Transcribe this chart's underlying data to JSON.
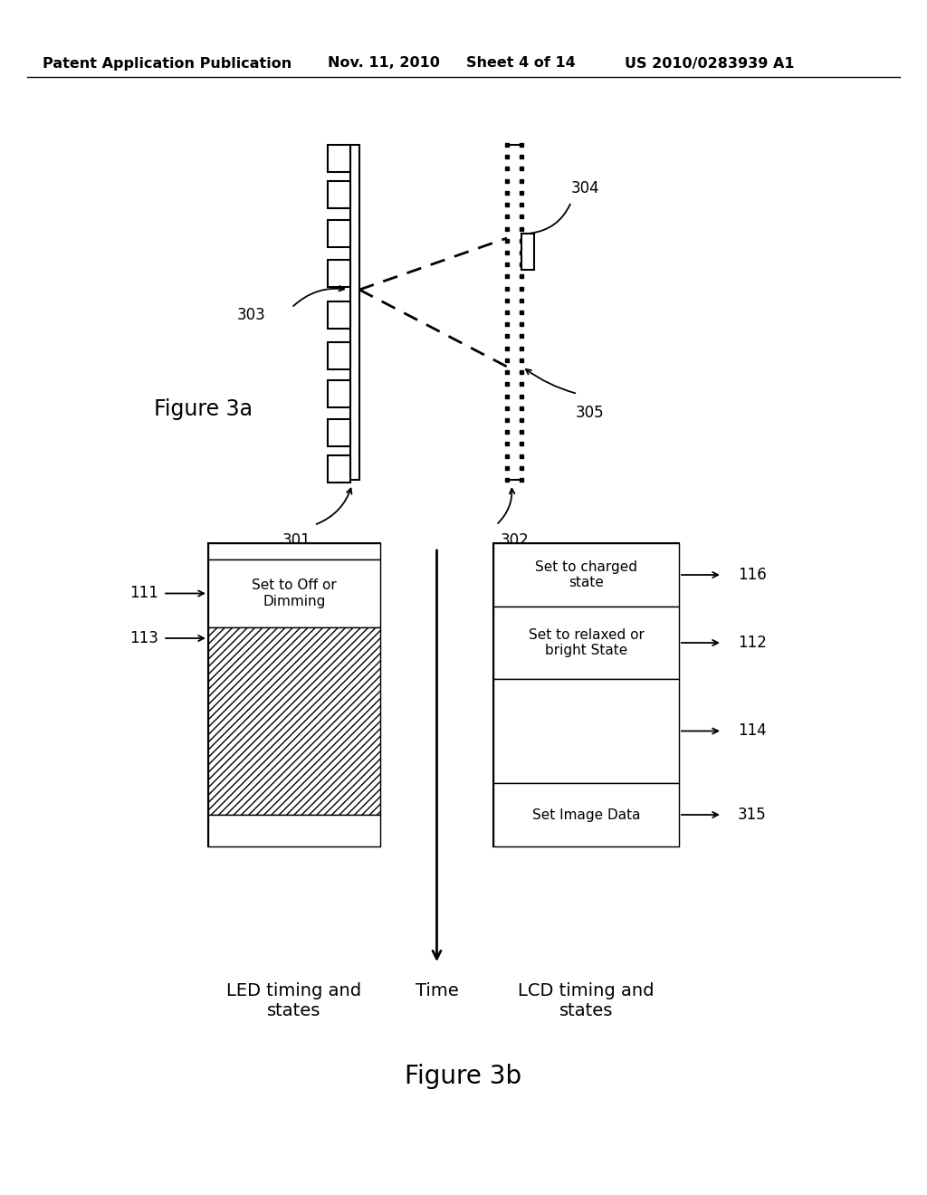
{
  "title_header": "Patent Application Publication",
  "title_date": "Nov. 11, 2010",
  "title_sheet": "Sheet 4 of 14",
  "title_patent": "US 2010/0283939 A1",
  "fig3a_label": "Figure 3a",
  "fig3b_label": "Figure 3b",
  "background_color": "#ffffff",
  "line_color": "#000000",
  "box_text_111": "Set to Off or\nDimming",
  "box_text_112": "Set to relaxed or\nbright State",
  "box_text_116": "Set to charged\nstate",
  "box_text_315": "Set Image Data",
  "led_timing_label": "LED timing and\nstates",
  "time_label": "Time",
  "lcd_timing_label": "LCD timing and\nstates"
}
